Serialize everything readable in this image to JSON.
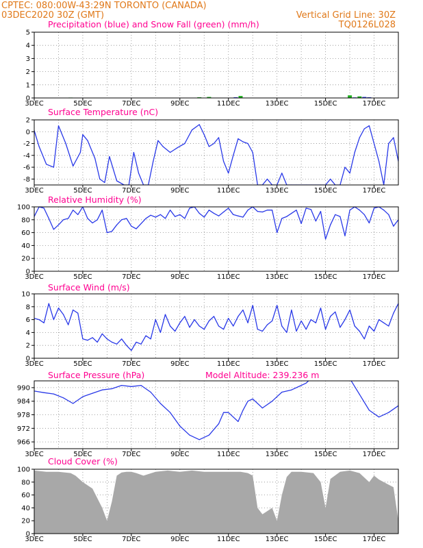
{
  "header": {
    "source_line": "CPTEC:   080:00W-43:29N   TORONTO (CANADA)",
    "date_line": "03DEC2020 30Z (GMT)",
    "grid_note": "Vertical Grid Line: 30Z",
    "code": "TQ0126L028"
  },
  "x_labels": [
    "3DEC",
    "5DEC",
    "7DEC",
    "9DEC",
    "11DEC",
    "13DEC",
    "15DEC",
    "17DEC"
  ],
  "colors": {
    "line": "#2838e8",
    "snow": "#20b020",
    "cloud": "#a8a8a8",
    "title": "#ff0090",
    "header": "#e07818",
    "grid": "#888888"
  },
  "chart_data": [
    {
      "id": "precip",
      "type": "bar",
      "title": "Precipitation (blue) and Snow Fall (green) (mm/h)",
      "ylim": [
        0,
        5
      ],
      "yticks": [
        0,
        1,
        2,
        3,
        4,
        5
      ],
      "xlim_days": [
        3,
        18
      ],
      "series": [
        {
          "name": "Precipitation",
          "x": [
            10.3,
            11.3,
            16.2,
            16.6,
            16.8
          ],
          "values": [
            0.02,
            0.05,
            0.04,
            0.08,
            0.05
          ]
        },
        {
          "name": "Snow Fall",
          "x": [
            4.5,
            5.3,
            7.2,
            9.8,
            10.2,
            11.5,
            16.0,
            16.4
          ],
          "values": [
            0.03,
            0.02,
            0.02,
            0.05,
            0.08,
            0.15,
            0.2,
            0.12
          ]
        }
      ]
    },
    {
      "id": "temp",
      "type": "line",
      "title": "Surface Temperature (nC)",
      "ylim": [
        -9,
        2
      ],
      "yticks": [
        -8,
        -6,
        -4,
        -2,
        0,
        2
      ],
      "xlim_days": [
        3,
        18
      ],
      "x": [
        3.0,
        3.2,
        3.5,
        3.8,
        4.0,
        4.3,
        4.6,
        4.9,
        5.0,
        5.2,
        5.5,
        5.7,
        5.9,
        6.1,
        6.4,
        6.7,
        6.9,
        7.1,
        7.3,
        7.5,
        7.7,
        7.9,
        8.1,
        8.3,
        8.6,
        8.9,
        9.2,
        9.5,
        9.8,
        10.0,
        10.2,
        10.4,
        10.6,
        10.8,
        11.0,
        11.2,
        11.4,
        11.6,
        11.8,
        12.0,
        12.2,
        12.4,
        12.6,
        12.8,
        13.0,
        13.2,
        13.4,
        13.6,
        13.8,
        14.0,
        14.2,
        14.4,
        14.6,
        14.8,
        15.0,
        15.2,
        15.4,
        15.6,
        15.8,
        16.0,
        16.2,
        16.4,
        16.6,
        16.8,
        17.0,
        17.2,
        17.4,
        17.6,
        17.8,
        18.0
      ],
      "values": [
        0.2,
        -2.5,
        -5.5,
        -6.0,
        1.0,
        -2.0,
        -5.8,
        -3.5,
        -0.5,
        -1.5,
        -4.5,
        -8.0,
        -8.6,
        -4.2,
        -8.3,
        -9.0,
        -9.0,
        -3.5,
        -7.0,
        -9.0,
        -9.0,
        -5.0,
        -1.5,
        -2.5,
        -3.5,
        -2.7,
        -2.0,
        0.3,
        1.2,
        -0.5,
        -2.5,
        -2.0,
        -1.0,
        -5.0,
        -7.0,
        -4.0,
        -1.2,
        -1.7,
        -2.0,
        -3.5,
        -9.0,
        -9.0,
        -8.0,
        -9.0,
        -9.0,
        -7.0,
        -9.0,
        -9.0,
        -9.0,
        -9.0,
        -9.0,
        -9.0,
        -9.0,
        -9.0,
        -9.0,
        -8.0,
        -9.0,
        -9.0,
        -6.0,
        -7.0,
        -3.5,
        -1.0,
        0.5,
        1.0,
        -2.0,
        -5.0,
        -9.0,
        -2.0,
        -1.0,
        -5.0
      ]
    },
    {
      "id": "rh",
      "type": "line",
      "title": "Relative Humidity (%)",
      "ylim": [
        0,
        100
      ],
      "yticks": [
        0,
        20,
        40,
        60,
        80,
        100
      ],
      "xlim_days": [
        3,
        18
      ],
      "x": [
        3.0,
        3.2,
        3.4,
        3.6,
        3.8,
        4.0,
        4.2,
        4.4,
        4.6,
        4.8,
        5.0,
        5.2,
        5.4,
        5.6,
        5.8,
        6.0,
        6.2,
        6.4,
        6.6,
        6.8,
        7.0,
        7.2,
        7.4,
        7.6,
        7.8,
        8.0,
        8.2,
        8.4,
        8.6,
        8.8,
        9.0,
        9.2,
        9.4,
        9.6,
        9.8,
        10.0,
        10.2,
        10.4,
        10.6,
        10.8,
        11.0,
        11.2,
        11.4,
        11.6,
        11.8,
        12.0,
        12.2,
        12.4,
        12.6,
        12.8,
        13.0,
        13.2,
        13.4,
        13.6,
        13.8,
        14.0,
        14.2,
        14.4,
        14.6,
        14.8,
        15.0,
        15.2,
        15.4,
        15.6,
        15.8,
        16.0,
        16.2,
        16.4,
        16.6,
        16.8,
        17.0,
        17.2,
        17.4,
        17.6,
        17.8,
        18.0
      ],
      "values": [
        85,
        100,
        98,
        82,
        65,
        72,
        80,
        82,
        95,
        88,
        100,
        82,
        75,
        80,
        95,
        60,
        62,
        72,
        80,
        82,
        70,
        66,
        74,
        82,
        87,
        84,
        88,
        82,
        95,
        85,
        88,
        82,
        98,
        100,
        90,
        84,
        95,
        90,
        86,
        92,
        98,
        88,
        86,
        84,
        95,
        100,
        93,
        92,
        95,
        95,
        60,
        82,
        85,
        90,
        95,
        74,
        98,
        96,
        78,
        93,
        50,
        72,
        88,
        85,
        55,
        95,
        100,
        95,
        88,
        75,
        98,
        100,
        95,
        88,
        70,
        80
      ]
    },
    {
      "id": "wind",
      "type": "line",
      "title": "Surface Wind (m/s)",
      "ylim": [
        0,
        10
      ],
      "yticks": [
        0,
        2,
        4,
        6,
        8,
        10
      ],
      "xlim_days": [
        3,
        18
      ],
      "x": [
        3.0,
        3.2,
        3.4,
        3.6,
        3.8,
        4.0,
        4.2,
        4.4,
        4.6,
        4.8,
        5.0,
        5.2,
        5.4,
        5.6,
        5.8,
        6.0,
        6.2,
        6.4,
        6.6,
        6.8,
        7.0,
        7.2,
        7.4,
        7.6,
        7.8,
        8.0,
        8.2,
        8.4,
        8.6,
        8.8,
        9.0,
        9.2,
        9.4,
        9.6,
        9.8,
        10.0,
        10.2,
        10.4,
        10.6,
        10.8,
        11.0,
        11.2,
        11.4,
        11.6,
        11.8,
        12.0,
        12.2,
        12.4,
        12.6,
        12.8,
        13.0,
        13.2,
        13.4,
        13.6,
        13.8,
        14.0,
        14.2,
        14.4,
        14.6,
        14.8,
        15.0,
        15.2,
        15.4,
        15.6,
        15.8,
        16.0,
        16.2,
        16.4,
        16.6,
        16.8,
        17.0,
        17.2,
        17.4,
        17.6,
        17.8,
        18.0
      ],
      "values": [
        6.2,
        6.0,
        5.5,
        8.5,
        6.0,
        7.8,
        6.8,
        5.2,
        7.5,
        7.0,
        3.0,
        2.8,
        3.2,
        2.5,
        3.8,
        3.0,
        2.5,
        2.2,
        3.0,
        2.0,
        1.2,
        2.5,
        2.2,
        3.5,
        3.0,
        6.0,
        4.0,
        6.8,
        5.0,
        4.2,
        5.5,
        6.5,
        4.8,
        6.0,
        5.0,
        4.5,
        5.8,
        6.5,
        5.0,
        4.5,
        6.2,
        5.0,
        6.5,
        7.5,
        5.5,
        8.2,
        4.5,
        4.2,
        5.2,
        5.8,
        8.2,
        5.0,
        4.0,
        7.5,
        4.2,
        5.8,
        4.5,
        6.0,
        5.5,
        7.8,
        4.5,
        6.5,
        7.2,
        4.8,
        6.0,
        7.5,
        5.0,
        4.2,
        3.0,
        5.0,
        4.2,
        6.0,
        5.5,
        5.0,
        7.0,
        8.5
      ]
    },
    {
      "id": "pressure",
      "type": "line",
      "title": "Surface Pressure (hPa)",
      "annotation": "Model Altitude: 239.236 m",
      "ylim": [
        963,
        993
      ],
      "yticks": [
        966,
        972,
        978,
        984,
        990
      ],
      "xlim_days": [
        3,
        18
      ],
      "x": [
        3.0,
        3.4,
        3.8,
        4.2,
        4.6,
        5.0,
        5.4,
        5.8,
        6.2,
        6.6,
        7.0,
        7.4,
        7.8,
        8.2,
        8.6,
        9.0,
        9.4,
        9.8,
        10.2,
        10.6,
        10.8,
        11.0,
        11.2,
        11.4,
        11.6,
        11.8,
        12.0,
        12.4,
        12.8,
        13.2,
        13.6,
        14.0,
        14.2,
        14.4,
        14.6,
        15.0,
        15.4,
        15.8,
        16.0,
        16.4,
        16.8,
        17.2,
        17.6,
        18.0
      ],
      "values": [
        988.5,
        987.8,
        987.2,
        985.5,
        983.0,
        986.0,
        987.5,
        989.0,
        989.5,
        991.0,
        990.5,
        991.0,
        988.0,
        983.0,
        979.0,
        973.0,
        969.0,
        967.0,
        969.0,
        974.0,
        979.0,
        979.0,
        977.0,
        975.0,
        980.0,
        984.0,
        985.0,
        981.0,
        984.0,
        988.0,
        989.0,
        991.0,
        992.0,
        994.0,
        995.0,
        996.0,
        997.0,
        998.0,
        994.0,
        987.0,
        980.0,
        977.0,
        979.0,
        982.0
      ]
    },
    {
      "id": "cloud",
      "type": "area",
      "title": "Cloud Cover (%)",
      "ylim": [
        0,
        100
      ],
      "yticks": [
        0,
        20,
        40,
        60,
        80,
        100
      ],
      "xlim_days": [
        3,
        18
      ],
      "x": [
        3.0,
        3.5,
        4.0,
        4.5,
        4.7,
        5.0,
        5.4,
        5.8,
        6.0,
        6.2,
        6.4,
        6.6,
        6.8,
        7.0,
        7.2,
        7.5,
        8.0,
        8.5,
        9.0,
        9.5,
        10.0,
        10.5,
        11.0,
        11.5,
        11.8,
        12.0,
        12.2,
        12.4,
        12.6,
        12.8,
        13.0,
        13.2,
        13.4,
        13.6,
        14.0,
        14.5,
        14.8,
        15.0,
        15.2,
        15.6,
        16.0,
        16.4,
        16.8,
        17.0,
        17.2,
        17.5,
        17.8,
        18.0
      ],
      "values": [
        98,
        96,
        96,
        94,
        90,
        80,
        70,
        40,
        20,
        50,
        90,
        95,
        96,
        96,
        94,
        90,
        96,
        98,
        96,
        98,
        96,
        96,
        96,
        96,
        94,
        90,
        40,
        30,
        35,
        40,
        20,
        60,
        88,
        96,
        96,
        94,
        80,
        40,
        85,
        96,
        98,
        94,
        80,
        90,
        84,
        78,
        72,
        20
      ]
    }
  ]
}
